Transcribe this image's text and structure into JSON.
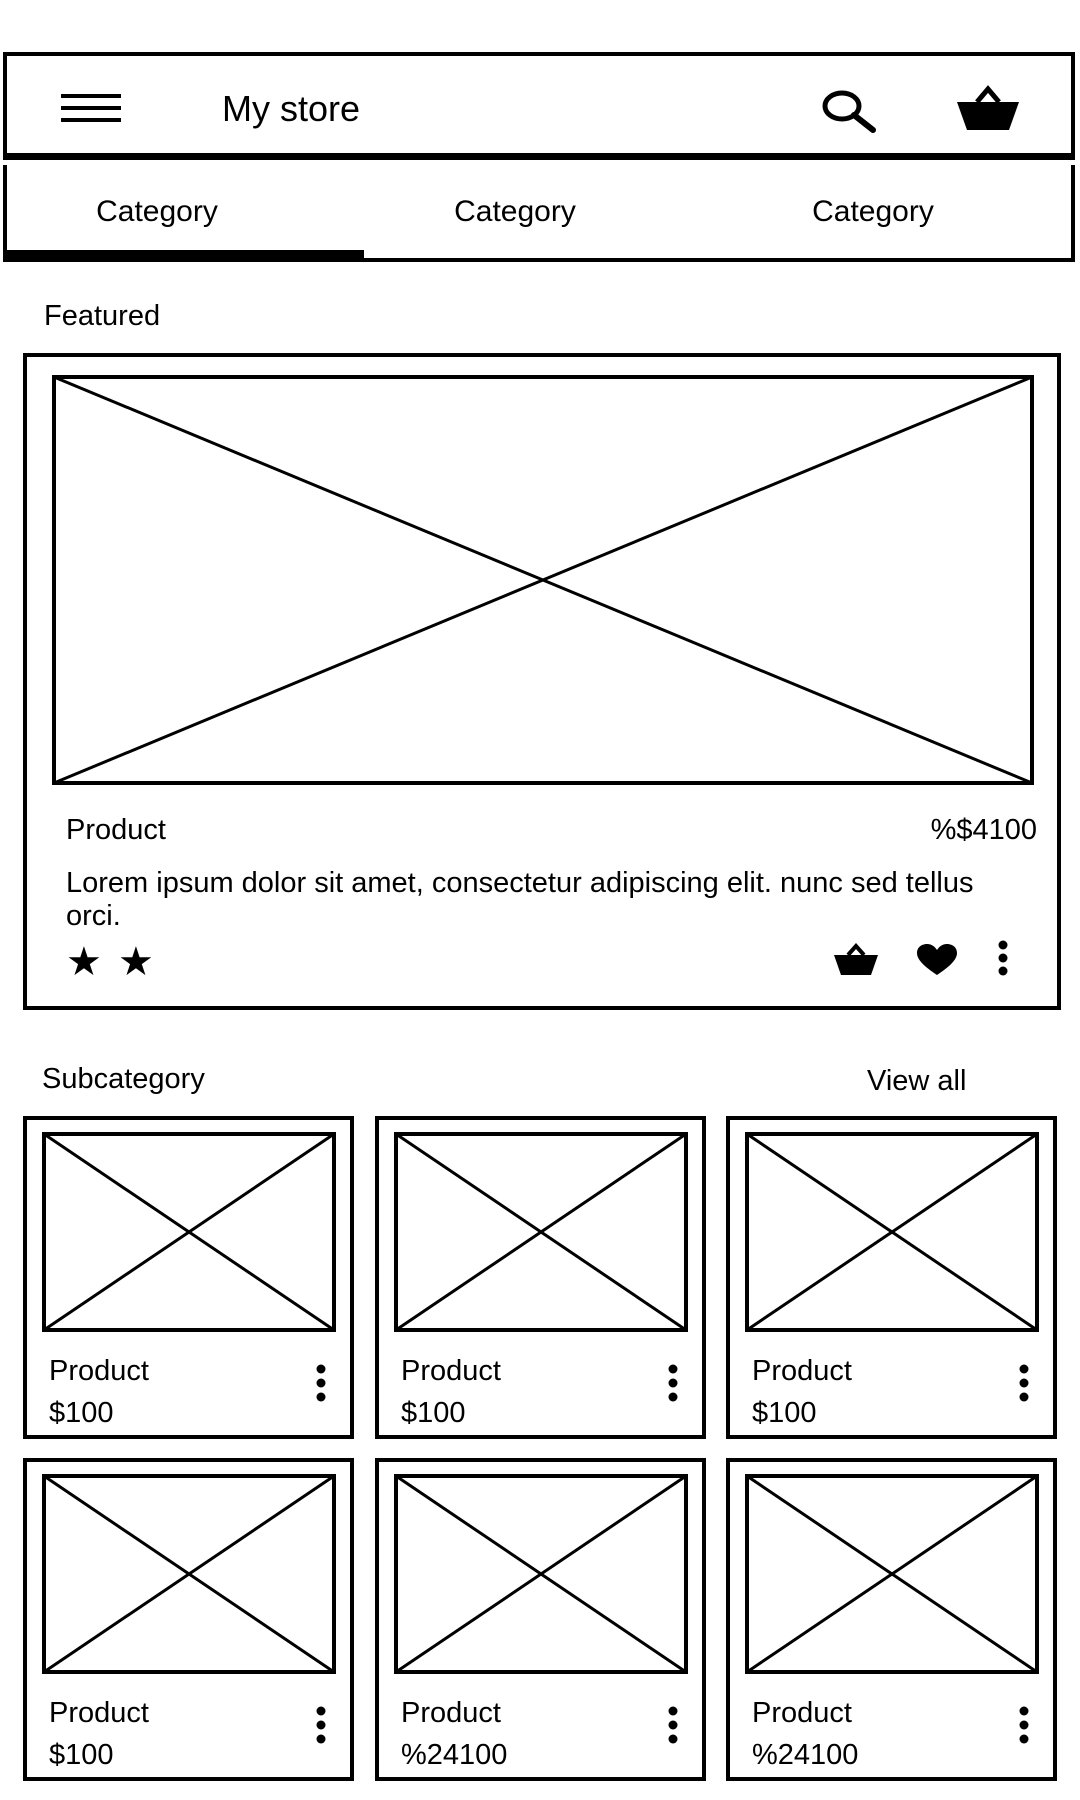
{
  "header": {
    "title": "My store",
    "menu_icon": "hamburger-menu-icon",
    "search_icon": "search-icon",
    "cart_icon": "basket-icon"
  },
  "tabs": [
    {
      "label": "Category",
      "selected": true
    },
    {
      "label": "Category",
      "selected": false
    },
    {
      "label": "Category",
      "selected": false
    }
  ],
  "featured": {
    "section_title": "Featured",
    "product_name": "Product",
    "price": "%$4100",
    "description": "Lorem ipsum dolor sit amet, consectetur adipiscing elit. nunc sed tellus orci.",
    "rating_stars": 2,
    "actions": [
      "basket-icon",
      "heart-icon",
      "more-vert-icon"
    ]
  },
  "subcategory": {
    "title": "Subcategory",
    "view_all": "View all",
    "products": [
      {
        "name": "Product",
        "price": "$100"
      },
      {
        "name": "Product",
        "price": "$100"
      },
      {
        "name": "Product",
        "price": "$100"
      },
      {
        "name": "Product",
        "price": "$100"
      },
      {
        "name": "Product",
        "price": "%24100"
      },
      {
        "name": "Product",
        "price": "%24100"
      }
    ]
  }
}
